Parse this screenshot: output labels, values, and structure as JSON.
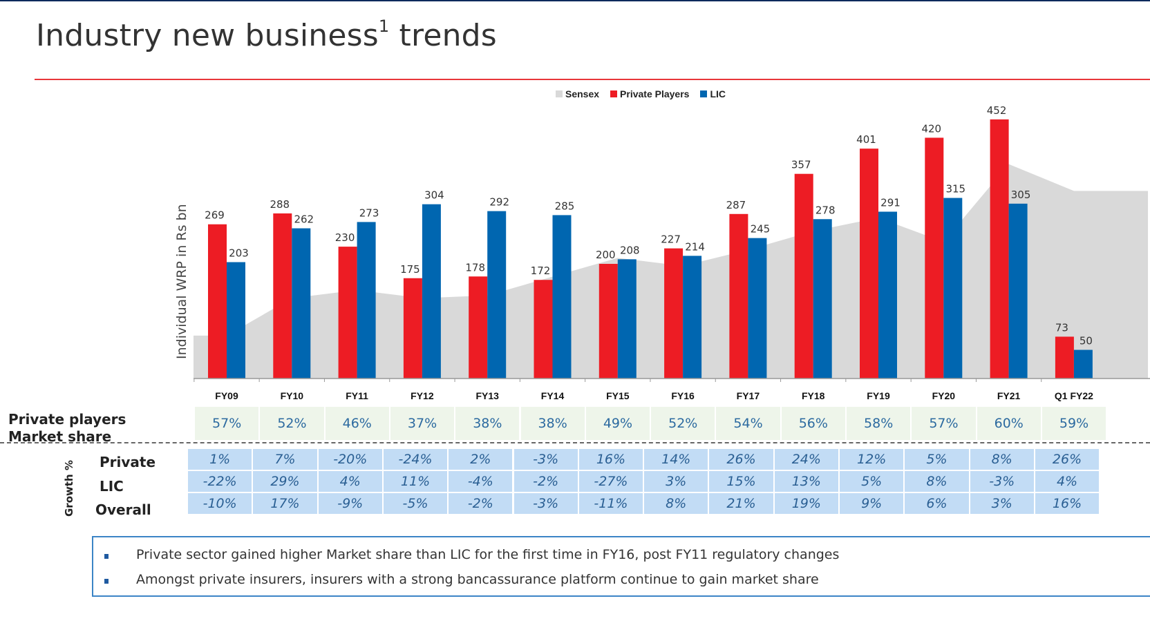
{
  "page": {
    "title_main": "Industry new business",
    "title_sup": "1",
    "title_tail": " trends"
  },
  "legend": [
    {
      "label": "Sensex",
      "color": "#d9d9d9"
    },
    {
      "label": "Private Players",
      "color": "#ed1c24"
    },
    {
      "label": "LIC",
      "color": "#0066b0"
    }
  ],
  "chart_data": {
    "type": "bar",
    "title": "Industry new business trends",
    "xlabel": "",
    "ylabel": "Individual WRP in Rs bn",
    "ylim": [
      0,
      460
    ],
    "grid": false,
    "legend_position": "top-center",
    "categories": [
      "FY09",
      "FY10",
      "FY11",
      "FY12",
      "FY13",
      "FY14",
      "FY15",
      "FY16",
      "FY17",
      "FY18",
      "FY19",
      "FY20",
      "FY21",
      "Q1 FY22"
    ],
    "series": [
      {
        "name": "Private Players",
        "color": "#ed1c24",
        "values": [
          269,
          288,
          230,
          175,
          178,
          172,
          200,
          227,
          287,
          357,
          401,
          420,
          452,
          73
        ]
      },
      {
        "name": "LIC",
        "color": "#0066b0",
        "values": [
          203,
          262,
          273,
          304,
          292,
          285,
          208,
          214,
          245,
          278,
          291,
          315,
          305,
          50
        ]
      }
    ],
    "sensex_area": {
      "name": "Sensex",
      "color": "#d9d9d9",
      "note": "unlabelled background area on secondary scale; relative level per category (0-1)",
      "relative_values": [
        0.16,
        0.3,
        0.33,
        0.3,
        0.31,
        0.38,
        0.45,
        0.42,
        0.48,
        0.55,
        0.6,
        0.51,
        0.8,
        0.7
      ]
    }
  },
  "market_share": {
    "label_line1": "Private players",
    "label_line2": "Market share",
    "values": [
      "57%",
      "52%",
      "46%",
      "37%",
      "38%",
      "38%",
      "49%",
      "52%",
      "54%",
      "56%",
      "58%",
      "57%",
      "60%",
      "59%"
    ]
  },
  "growth": {
    "axis_label": "Growth %",
    "rows": [
      {
        "label": "Private",
        "values": [
          "1%",
          "7%",
          "-20%",
          "-24%",
          "2%",
          "-3%",
          "16%",
          "14%",
          "26%",
          "24%",
          "12%",
          "5%",
          "8%",
          "26%"
        ]
      },
      {
        "label": "LIC",
        "values": [
          "-22%",
          "29%",
          "4%",
          "11%",
          "-4%",
          "-2%",
          "-27%",
          "3%",
          "15%",
          "13%",
          "5%",
          "8%",
          "-3%",
          "4%"
        ]
      },
      {
        "label": "Overall",
        "values": [
          "-10%",
          "17%",
          "-9%",
          "-5%",
          "-2%",
          "-3%",
          "-11%",
          "8%",
          "21%",
          "19%",
          "9%",
          "6%",
          "3%",
          "16%"
        ]
      }
    ]
  },
  "notes": [
    "Private sector gained higher Market share than LIC for the first time in FY16, post FY11 regulatory changes",
    "Amongst private insurers, insurers with a strong bancassurance platform continue to gain market share"
  ]
}
